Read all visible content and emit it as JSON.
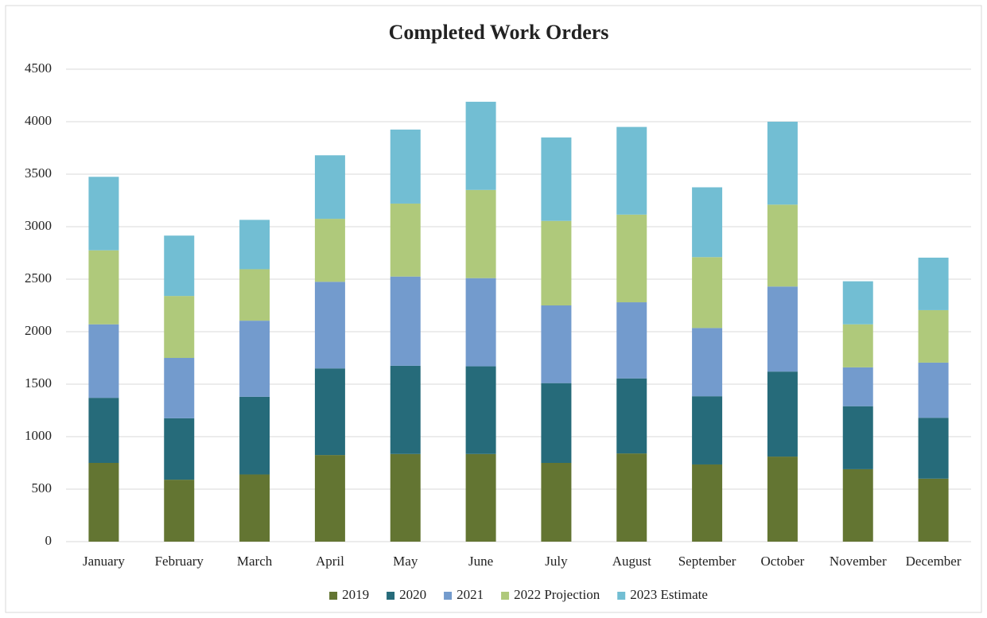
{
  "chart_data": {
    "type": "stacked_bar",
    "title": "Completed Work Orders",
    "categories": [
      "January",
      "February",
      "March",
      "April",
      "May",
      "June",
      "July",
      "August",
      "September",
      "October",
      "November",
      "December"
    ],
    "series": [
      {
        "name": "2019",
        "color": "#637532",
        "values": [
          750,
          590,
          640,
          825,
          835,
          835,
          750,
          840,
          735,
          810,
          690,
          600
        ]
      },
      {
        "name": "2020",
        "color": "#266b7a",
        "values": [
          620,
          585,
          740,
          825,
          840,
          835,
          760,
          715,
          650,
          810,
          600,
          580
        ]
      },
      {
        "name": "2021",
        "color": "#739bcd",
        "values": [
          700,
          575,
          725,
          825,
          850,
          840,
          740,
          725,
          650,
          810,
          370,
          525
        ]
      },
      {
        "name": "2022 Projection",
        "color": "#afc97b",
        "values": [
          705,
          590,
          490,
          600,
          695,
          840,
          805,
          835,
          675,
          780,
          410,
          500
        ]
      },
      {
        "name": "2023 Estimate",
        "color": "#72bed3",
        "values": [
          700,
          575,
          470,
          605,
          705,
          840,
          795,
          835,
          665,
          790,
          410,
          500
        ]
      }
    ],
    "ylim": [
      0,
      4500
    ],
    "yticks": [
      0,
      500,
      1000,
      1500,
      2000,
      2500,
      3000,
      3500,
      4000,
      4500
    ],
    "grid": true,
    "legend": "bottom"
  }
}
